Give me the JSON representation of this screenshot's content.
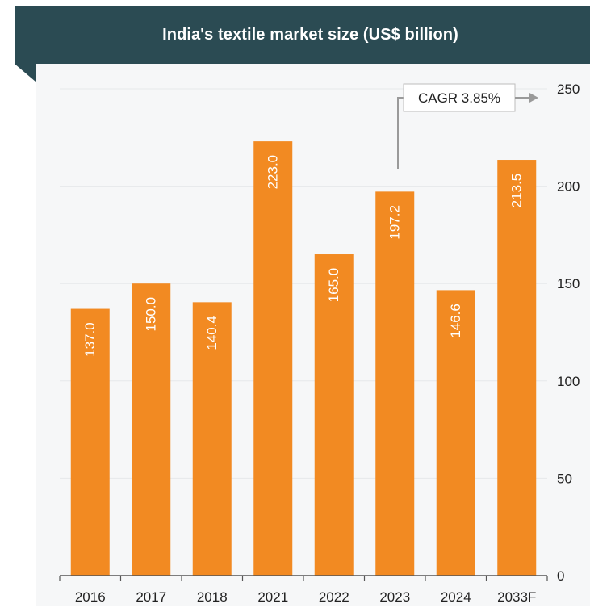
{
  "chart_data": {
    "type": "bar",
    "title": "India's textile market size (US$ billion)",
    "categories": [
      "2016",
      "2017",
      "2018",
      "2021",
      "2022",
      "2023",
      "2024",
      "2033F"
    ],
    "values": [
      137.0,
      150.0,
      140.4,
      223.0,
      165.0,
      197.2,
      146.6,
      213.5
    ],
    "data_labels": [
      "137.0",
      "150.0",
      "140.4",
      "223.0",
      "165.0",
      "197.2",
      "146.6",
      "213.5"
    ],
    "ylim": [
      0,
      250
    ],
    "yticks": [
      0,
      50,
      100,
      150,
      200,
      250
    ],
    "y_axis_side": "right",
    "grid": true,
    "bar_color": "#f28a22",
    "label_color": "#ffffff",
    "annotation": {
      "text": "CAGR 3.85%"
    }
  },
  "colors": {
    "header_bg": "#2b4b53",
    "plot_bg": "#f6f7f8",
    "axis": "#555555",
    "grid": "#e6e8ea",
    "text": "#222222"
  }
}
